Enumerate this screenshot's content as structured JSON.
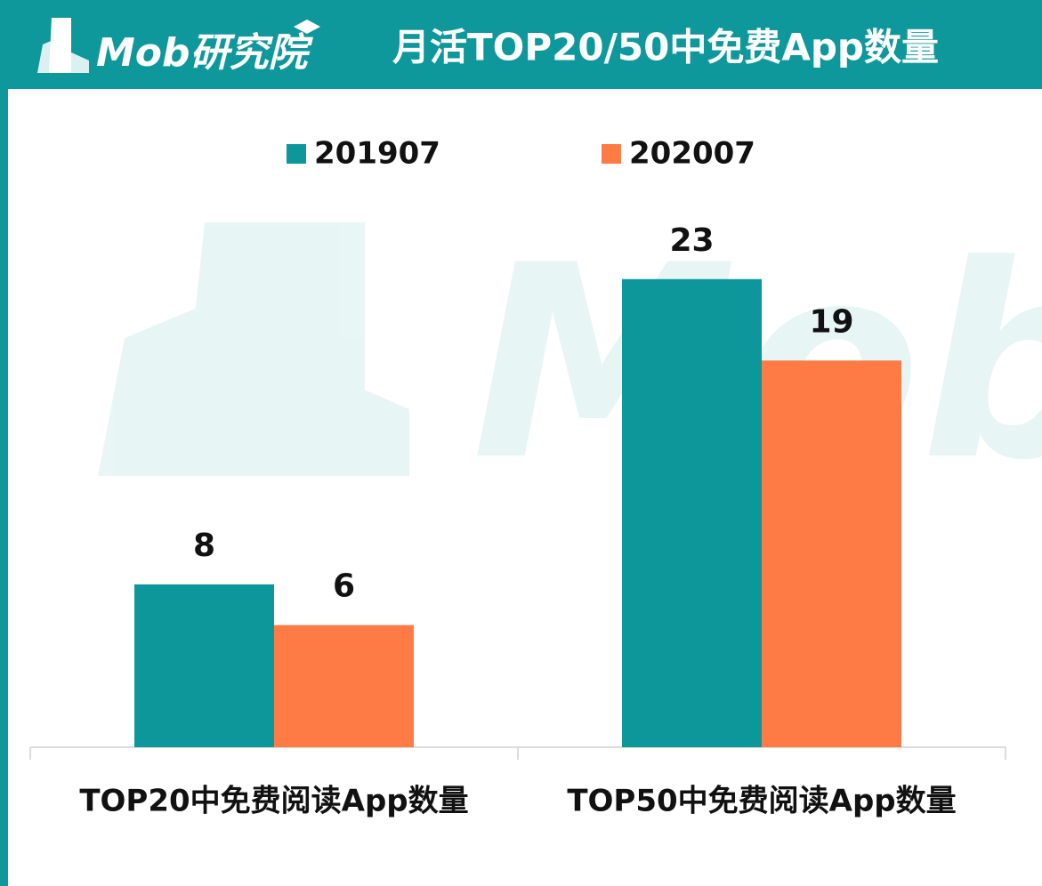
{
  "logo": "Mob研究院",
  "chart_data": {
    "type": "bar",
    "title": "月活TOP20/50中免费App数量",
    "categories": [
      "TOP20中免费阅读App数量",
      "TOP50中免费阅读App数量"
    ],
    "series": [
      {
        "name": "201907",
        "color": "#0e979b",
        "values": [
          8,
          23
        ]
      },
      {
        "name": "202007",
        "color": "#ff7b45",
        "values": [
          6,
          19
        ]
      }
    ],
    "ylim": [
      0,
      25
    ],
    "grid": false,
    "legend": "top"
  }
}
